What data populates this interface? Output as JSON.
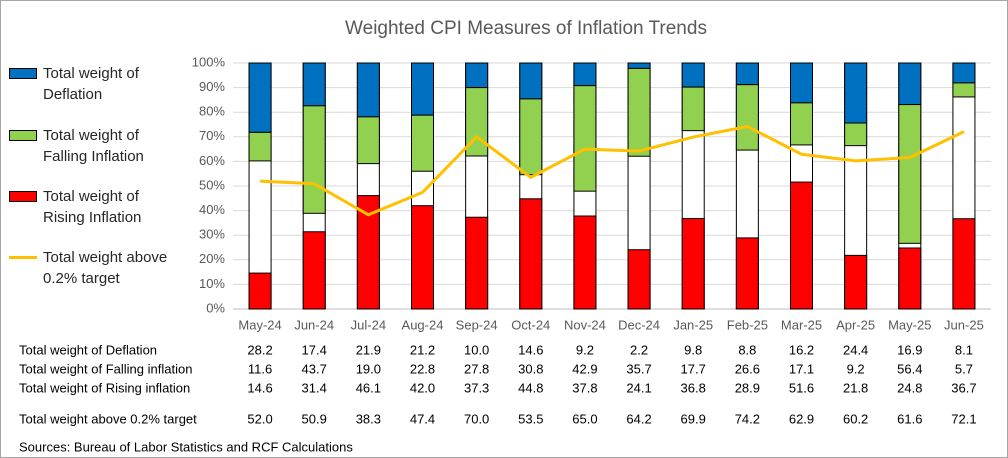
{
  "chart_data": {
    "type": "bar",
    "title": "Weighted CPI Measures of Inflation Trends",
    "categories": [
      "May-24",
      "Jun-24",
      "Jul-24",
      "Aug-24",
      "Sep-24",
      "Oct-24",
      "Nov-24",
      "Dec-24",
      "Jan-25",
      "Feb-25",
      "Mar-25",
      "Apr-25",
      "May-25",
      "Jun-25"
    ],
    "series": [
      {
        "name": "Total weight of Deflation",
        "color": "#0070c0",
        "stack": "top",
        "values": [
          28.2,
          17.4,
          21.9,
          21.2,
          10.0,
          14.6,
          9.2,
          2.2,
          9.8,
          8.8,
          16.2,
          24.4,
          16.9,
          8.1
        ],
        "value_labels": [
          "28.2",
          "17.4",
          "21.9",
          "21.2",
          "10.0",
          "14.6",
          "9.2",
          "2.2",
          "9.8",
          "8.8",
          "16.2",
          "24.4",
          "16.9",
          "8.1"
        ]
      },
      {
        "name": "Total weight of Falling Inflation",
        "color": "#92d050",
        "stack": "top",
        "values": [
          11.6,
          43.7,
          19.0,
          22.8,
          27.8,
          30.8,
          42.9,
          35.7,
          17.7,
          26.6,
          17.1,
          9.2,
          56.4,
          5.7
        ],
        "value_labels": [
          "11.6",
          "43.7",
          "19.0",
          "22.8",
          "27.8",
          "30.8",
          "42.9",
          "35.7",
          "17.7",
          "26.6",
          "17.1",
          "9.2",
          "56.4",
          "5.7"
        ]
      },
      {
        "name": "Total weight of Rising Inflation",
        "color": "#ff0000",
        "stack": "bottom",
        "values": [
          14.6,
          31.4,
          46.1,
          42.0,
          37.3,
          44.8,
          37.8,
          24.1,
          36.8,
          28.9,
          51.6,
          21.8,
          24.8,
          36.7
        ],
        "value_labels": [
          "14.6",
          "31.4",
          "46.1",
          "42.0",
          "37.3",
          "44.8",
          "37.8",
          "24.1",
          "36.8",
          "28.9",
          "51.6",
          "21.8",
          "24.8",
          "36.7"
        ]
      },
      {
        "name": "Total weight above 0.2% target",
        "color": "#ffc000",
        "type": "line",
        "values": [
          52.0,
          50.9,
          38.3,
          47.4,
          70.0,
          53.5,
          65.0,
          64.2,
          69.9,
          74.2,
          62.9,
          60.2,
          61.6,
          72.1
        ],
        "value_labels": [
          "52.0",
          "50.9",
          "38.3",
          "47.4",
          "70.0",
          "53.5",
          "65.0",
          "64.2",
          "69.9",
          "74.2",
          "62.9",
          "60.2",
          "61.6",
          "72.1"
        ]
      }
    ],
    "table_row_labels": [
      "Total weight of Deflation",
      "Total weight of Falling inflation",
      "Total weight of Rising inflation",
      "Total weight above 0.2% target"
    ],
    "ylim": [
      0,
      100
    ],
    "yticks": [
      {
        "value": 0,
        "label": "0%"
      },
      {
        "value": 10,
        "label": "10%"
      },
      {
        "value": 20,
        "label": "20%"
      },
      {
        "value": 30,
        "label": "30%"
      },
      {
        "value": 40,
        "label": "40%"
      },
      {
        "value": 50,
        "label": "50%"
      },
      {
        "value": 60,
        "label": "60%"
      },
      {
        "value": 70,
        "label": "70%"
      },
      {
        "value": 80,
        "label": "80%"
      },
      {
        "value": 90,
        "label": "90%"
      },
      {
        "value": 100,
        "label": "100%"
      }
    ],
    "legend": "left",
    "source": "Sources: Bureau of Labor Statistics and RCF Calculations"
  }
}
